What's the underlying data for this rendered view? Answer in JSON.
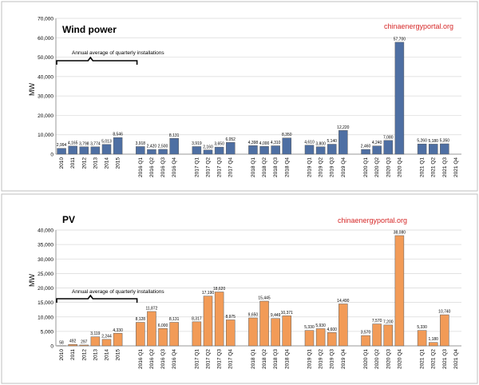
{
  "chart_data": [
    {
      "type": "bar",
      "title": "Wind power",
      "watermark": "chinaenergyportal.org",
      "ylabel": "MW",
      "ylim": [
        0,
        70000
      ],
      "yticks": [
        "0",
        "10,000",
        "20,000",
        "30,000",
        "40,000",
        "50,000",
        "60,000",
        "70,000"
      ],
      "grid": true,
      "color": "#4e6fa3",
      "annotation": "Annual average of quarterly installations",
      "categories": [
        "2010",
        "2011",
        "2012",
        "2013",
        "2014",
        "2015",
        "",
        "2016 Q1",
        "2016 Q2",
        "2016 Q3",
        "2016 Q4",
        "",
        "2017 Q1",
        "2017 Q2",
        "2017 Q3",
        "2017 Q4",
        "",
        "2018 Q1",
        "2018 Q2",
        "2018 Q3",
        "2018 Q4",
        "",
        "2019 Q1",
        "2019 Q2",
        "2019 Q3",
        "2019 Q4",
        "",
        "2020 Q1",
        "2020 Q2",
        "2020 Q3",
        "2020 Q4",
        "",
        "2021 Q1",
        "2021 Q2",
        "2021 Q3",
        "2021 Q4"
      ],
      "values": [
        2994,
        4165,
        3798,
        3774,
        5013,
        8546,
        null,
        3918,
        2420,
        2500,
        8131,
        null,
        3919,
        2160,
        3650,
        6052,
        null,
        4398,
        4000,
        4310,
        8350,
        null,
        4610,
        3800,
        5140,
        12220,
        null,
        2460,
        4240,
        7080,
        57700,
        null,
        5260,
        5180,
        5350,
        null
      ],
      "labels": [
        "2,994",
        "4,165",
        "3,798",
        "3,774",
        "5,013",
        "8,546",
        "",
        "3,918",
        "2,420",
        "2,500",
        "8,131",
        "",
        "3,919",
        "2,160",
        "3,650",
        "6,052",
        "",
        "4,398",
        "4,000",
        "4,310",
        "8,350",
        "",
        "4,610",
        "3,800",
        "5,140",
        "12,220",
        "",
        "2,460",
        "4,240",
        "7,080",
        "57,700",
        "",
        "5,260",
        "5,180",
        "5,350",
        ""
      ]
    },
    {
      "type": "bar",
      "title": "PV",
      "watermark": "chinaenergyportal.org",
      "ylabel": "MW",
      "ylim": [
        0,
        40000
      ],
      "yticks": [
        "0",
        "5,000",
        "10,000",
        "15,000",
        "20,000",
        "25,000",
        "30,000",
        "35,000",
        "40,000"
      ],
      "grid": true,
      "color": "#f29b57",
      "annotation": "Annual average of quarterly installations",
      "categories": [
        "2010",
        "2011",
        "2012",
        "2013",
        "2014",
        "2015",
        "",
        "2016 Q1",
        "2016 Q2",
        "2016 Q3",
        "2016 Q4",
        "",
        "2017 Q1",
        "2017 Q2",
        "2017 Q3",
        "2017 Q4",
        "",
        "2018 Q1",
        "2018 Q2",
        "2018 Q3",
        "2018 Q4",
        "",
        "2019 Q1",
        "2019 Q2",
        "2019 Q3",
        "2019 Q4",
        "",
        "2020 Q1",
        "2020 Q2",
        "2020 Q3",
        "2020 Q4",
        "",
        "2021 Q1",
        "2021 Q2",
        "2021 Q3",
        "2021 Q4"
      ],
      "values": [
        58,
        492,
        297,
        3119,
        2244,
        4330,
        null,
        8128,
        11872,
        6000,
        8131,
        null,
        8317,
        17190,
        18620,
        8975,
        null,
        9650,
        15445,
        9449,
        10371,
        null,
        5330,
        5930,
        4600,
        14490,
        null,
        3570,
        7570,
        7200,
        38080,
        null,
        5330,
        1180,
        10740,
        null
      ],
      "labels": [
        "58",
        "492",
        "297",
        "3,119",
        "2,244",
        "4,330",
        "",
        "8,128",
        "11,872",
        "6,000",
        "8,131",
        "",
        "8,317",
        "17,190",
        "18,620",
        "8,975",
        "",
        "9,650",
        "15,445",
        "9,449",
        "10,371",
        "",
        "5,330",
        "5,930",
        "4,600",
        "14,490",
        "",
        "3,570",
        "7,570",
        "7,200",
        "38,080",
        "",
        "5,330",
        "1,180",
        "10,740",
        ""
      ]
    }
  ]
}
